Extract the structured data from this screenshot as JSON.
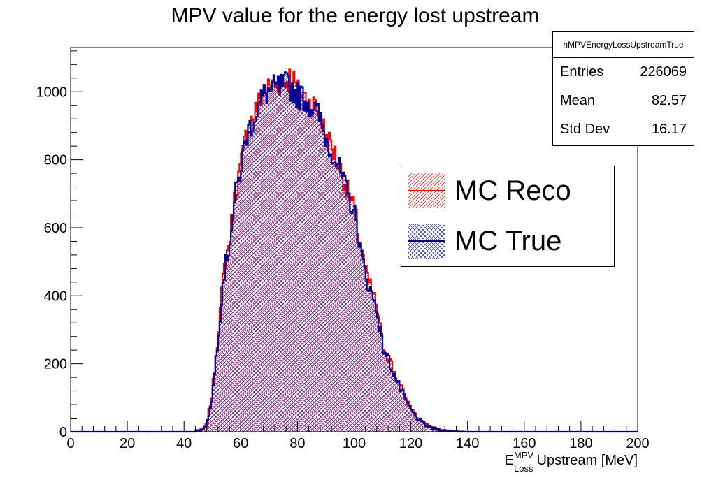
{
  "chart_data": {
    "type": "histogram",
    "title": "MPV value for the energy lost upstream",
    "xlabel": {
      "base": "E",
      "superscript": "MPV",
      "subscript": "Loss",
      "suffix": "Upstream [MeV]"
    },
    "ylabel": "",
    "xlim": [
      0,
      200
    ],
    "ylim": [
      0,
      1130
    ],
    "x_ticks": [
      0,
      20,
      40,
      60,
      80,
      100,
      120,
      140,
      160,
      180,
      200
    ],
    "y_ticks": [
      0,
      200,
      400,
      600,
      800,
      1000
    ],
    "grid": false,
    "legend_position": "right",
    "stats": {
      "name": "hMPVEnergyLossUpstreamTrue",
      "rows": [
        {
          "label": "Entries",
          "value": "226069"
        },
        {
          "label": "Mean",
          "value": "82.57"
        },
        {
          "label": "Std Dev",
          "value": "16.17"
        }
      ]
    },
    "bin_width": 0.5,
    "series": [
      {
        "name": "MC Reco",
        "color": "#ff0000",
        "hatch": "forward-diagonal",
        "x": [
          46,
          48,
          50,
          52,
          54,
          56,
          58,
          60,
          62,
          64,
          66,
          68,
          70,
          72,
          74,
          76,
          78,
          80,
          82,
          84,
          86,
          88,
          90,
          92,
          94,
          96,
          98,
          100,
          102,
          104,
          106,
          108,
          110,
          112,
          114,
          116,
          118,
          120,
          122,
          124,
          126,
          128,
          130,
          132,
          134,
          136,
          138,
          140,
          142
        ],
        "y": [
          5,
          20,
          120,
          290,
          470,
          560,
          700,
          780,
          880,
          920,
          960,
          1000,
          1010,
          1020,
          1025,
          1030,
          1050,
          1000,
          990,
          970,
          960,
          930,
          870,
          840,
          800,
          750,
          700,
          660,
          560,
          470,
          420,
          370,
          260,
          225,
          180,
          140,
          100,
          70,
          45,
          28,
          18,
          12,
          7,
          4,
          2,
          1,
          1,
          0,
          0
        ]
      },
      {
        "name": "MC True",
        "color": "#000099",
        "hatch": "cross",
        "x": [
          46,
          48,
          50,
          52,
          54,
          56,
          58,
          60,
          62,
          64,
          66,
          68,
          70,
          72,
          74,
          76,
          78,
          80,
          82,
          84,
          86,
          88,
          90,
          92,
          94,
          96,
          98,
          100,
          102,
          104,
          106,
          108,
          110,
          112,
          114,
          116,
          118,
          120,
          122,
          124,
          126,
          128,
          130,
          132,
          134,
          136,
          138,
          140,
          142
        ],
        "y": [
          4,
          18,
          110,
          280,
          460,
          550,
          690,
          770,
          870,
          910,
          950,
          990,
          1000,
          1010,
          1015,
          1020,
          1010,
          990,
          985,
          965,
          950,
          920,
          860,
          830,
          790,
          740,
          690,
          650,
          550,
          460,
          410,
          360,
          250,
          215,
          170,
          130,
          95,
          65,
          42,
          26,
          16,
          10,
          6,
          3,
          2,
          1,
          0,
          0,
          0
        ]
      }
    ]
  }
}
